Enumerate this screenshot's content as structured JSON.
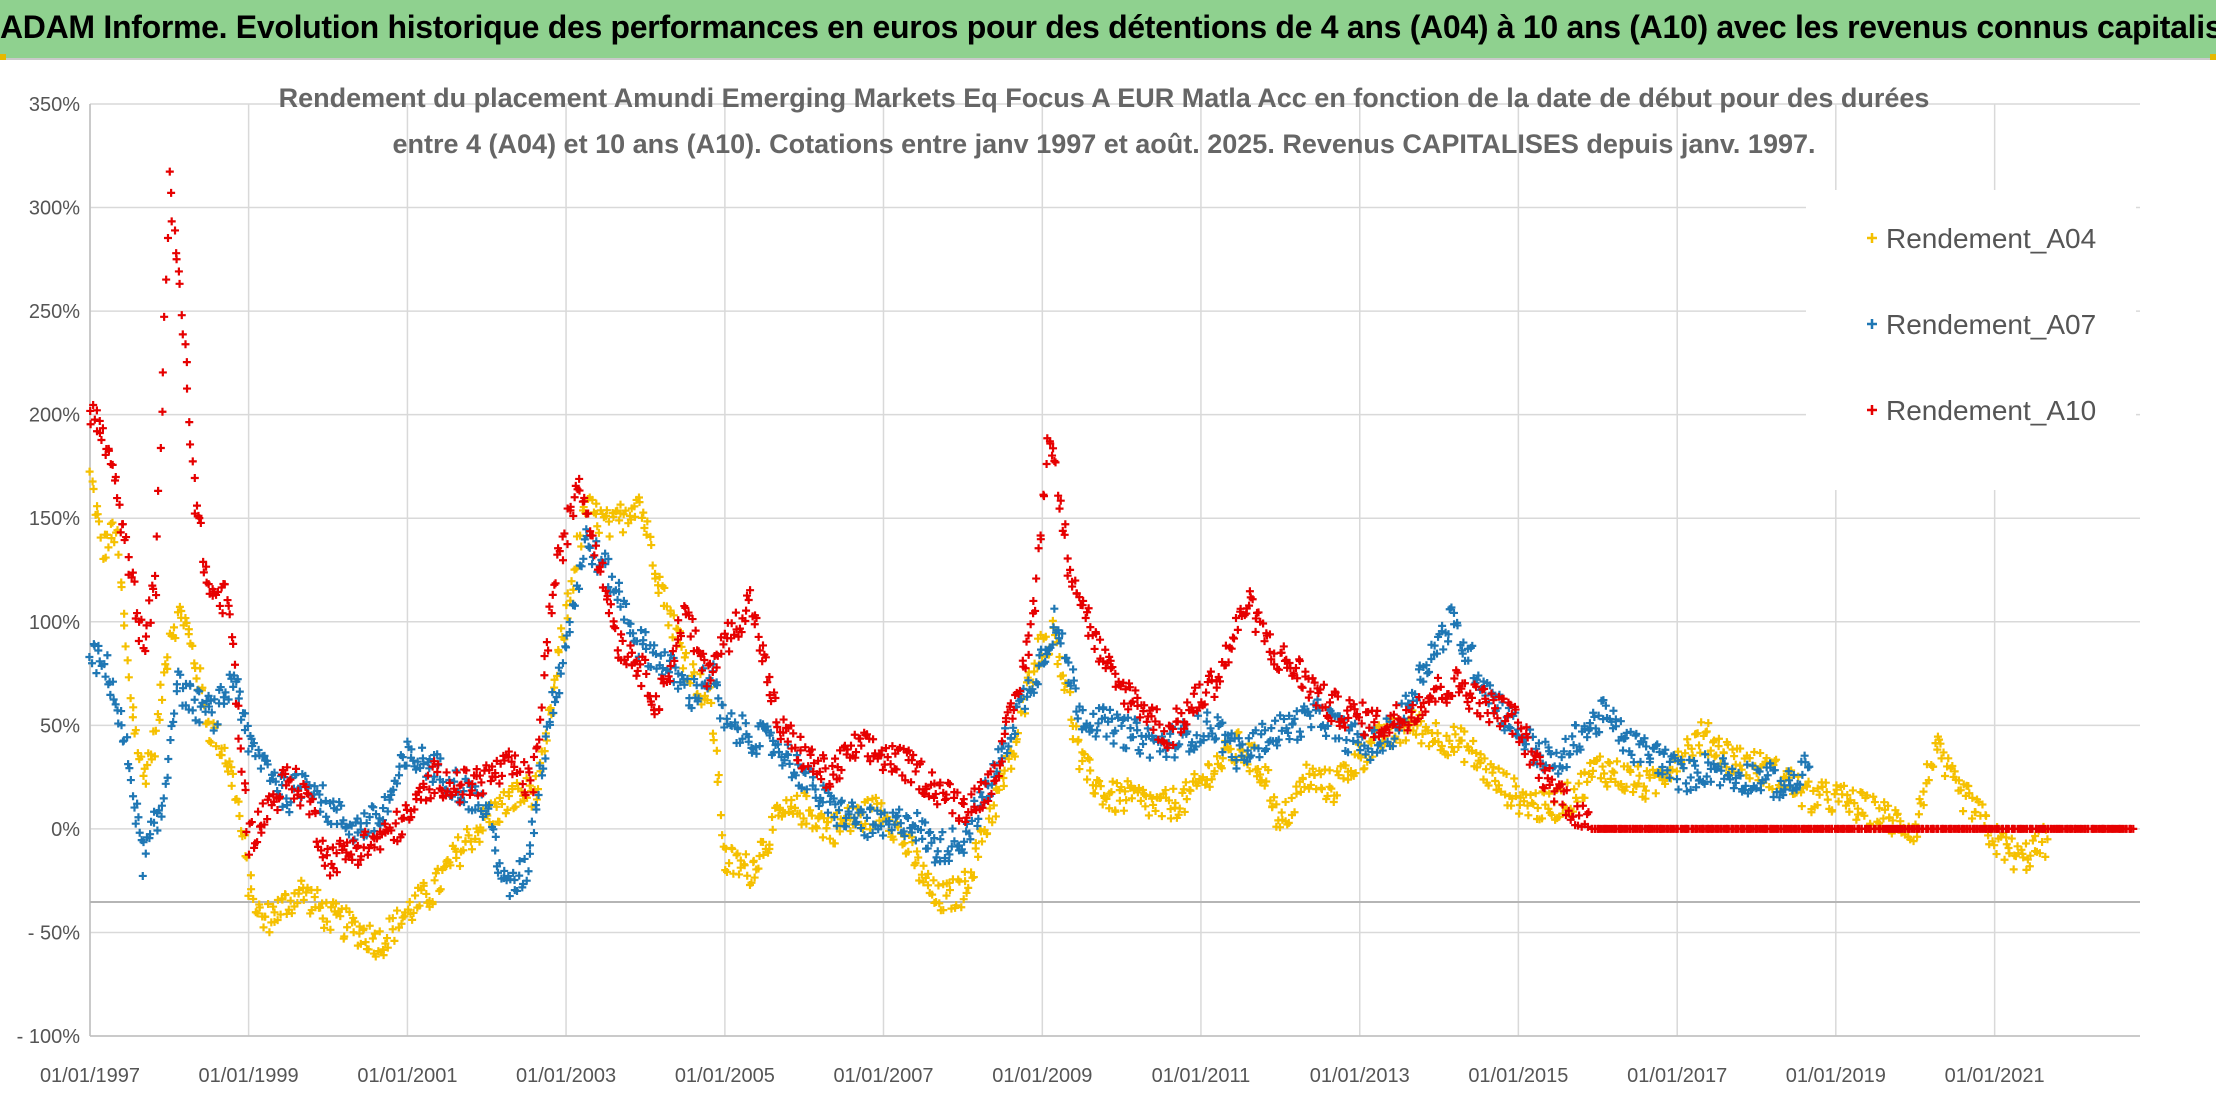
{
  "banner": {
    "title": "ADAM Informe. Evolution historique des performances en euros pour des détentions de 4 ans (A04) à 10 ans (A10) avec les revenus connus capitalisés"
  },
  "chart_data": {
    "type": "scatter",
    "title_lines": [
      "Rendement du placement Amundi Emerging Markets Eq Focus A EUR Matla Acc en fonction de la date de début pour des durées",
      "entre 4 (A04) et 10 ans (A10). Cotations entre janv 1997 et août. 2025. Revenus CAPITALISES depuis janv. 1997."
    ],
    "x_ticks": [
      "01/01/1997",
      "01/01/1999",
      "01/01/2001",
      "01/01/2003",
      "01/01/2005",
      "01/01/2007",
      "01/01/2009",
      "01/01/2011",
      "01/01/2013",
      "01/01/2015",
      "01/01/2017",
      "01/01/2019",
      "01/01/2021"
    ],
    "y_ticks": [
      "350%",
      "300%",
      "250%",
      "200%",
      "150%",
      "100%",
      "50%",
      "0%",
      "- 50%",
      "- 100%"
    ],
    "xlim": [
      "1997-01-01",
      "2022-11-01"
    ],
    "ylim": [
      -100,
      350
    ],
    "grid": true,
    "legend_position": "top-right",
    "marker": "+",
    "series": [
      {
        "name": "Rendement_A04",
        "color": "#f5c000",
        "points": [
          [
            "1997-01-01",
            170
          ],
          [
            "1997-03-01",
            135
          ],
          [
            "1997-05-01",
            145
          ],
          [
            "1997-07-01",
            70
          ],
          [
            "1997-09-01",
            25
          ],
          [
            "1997-11-01",
            45
          ],
          [
            "1998-01-01",
            95
          ],
          [
            "1998-03-01",
            105
          ],
          [
            "1998-05-01",
            80
          ],
          [
            "1998-07-01",
            50
          ],
          [
            "1998-09-01",
            40
          ],
          [
            "1998-11-01",
            20
          ],
          [
            "1999-01-01",
            -25
          ],
          [
            "1999-03-01",
            -45
          ],
          [
            "1999-06-01",
            -38
          ],
          [
            "1999-09-01",
            -30
          ],
          [
            "2000-01-01",
            -42
          ],
          [
            "2000-05-01",
            -48
          ],
          [
            "2000-09-01",
            -55
          ],
          [
            "2001-01-01",
            -40
          ],
          [
            "2001-05-01",
            -30
          ],
          [
            "2001-09-01",
            -10
          ],
          [
            "2002-01-01",
            5
          ],
          [
            "2002-05-01",
            15
          ],
          [
            "2002-09-01",
            20
          ],
          [
            "2002-12-01",
            85
          ],
          [
            "2003-04-01",
            155
          ],
          [
            "2003-08-01",
            145
          ],
          [
            "2003-12-01",
            160
          ],
          [
            "2004-04-01",
            110
          ],
          [
            "2004-08-01",
            75
          ],
          [
            "2004-11-01",
            60
          ],
          [
            "2005-01-01",
            -15
          ],
          [
            "2005-05-01",
            -20
          ],
          [
            "2005-09-01",
            5
          ],
          [
            "2006-01-01",
            10
          ],
          [
            "2006-05-01",
            0
          ],
          [
            "2006-09-01",
            5
          ],
          [
            "2007-01-01",
            10
          ],
          [
            "2007-05-01",
            -10
          ],
          [
            "2007-09-01",
            -35
          ],
          [
            "2008-01-01",
            -30
          ],
          [
            "2008-05-01",
            5
          ],
          [
            "2008-09-01",
            40
          ],
          [
            "2008-12-01",
            85
          ],
          [
            "2009-03-01",
            95
          ],
          [
            "2009-07-01",
            30
          ],
          [
            "2009-11-01",
            15
          ],
          [
            "2010-03-01",
            15
          ],
          [
            "2010-07-01",
            10
          ],
          [
            "2010-11-01",
            15
          ],
          [
            "2011-03-01",
            30
          ],
          [
            "2011-07-01",
            40
          ],
          [
            "2011-11-01",
            25
          ],
          [
            "2012-01-01",
            0
          ],
          [
            "2012-05-01",
            25
          ],
          [
            "2012-09-01",
            20
          ],
          [
            "2013-01-01",
            35
          ],
          [
            "2013-05-01",
            45
          ],
          [
            "2013-09-01",
            50
          ],
          [
            "2014-01-01",
            45
          ],
          [
            "2014-05-01",
            40
          ],
          [
            "2014-09-01",
            25
          ],
          [
            "2015-01-01",
            15
          ],
          [
            "2015-05-01",
            10
          ],
          [
            "2015-09-01",
            15
          ],
          [
            "2016-01-01",
            30
          ],
          [
            "2016-05-01",
            25
          ],
          [
            "2016-09-01",
            20
          ],
          [
            "2017-01-01",
            35
          ],
          [
            "2017-05-01",
            45
          ],
          [
            "2017-09-01",
            35
          ],
          [
            "2018-01-01",
            30
          ],
          [
            "2018-05-01",
            25
          ],
          [
            "2018-09-01",
            15
          ],
          [
            "2019-01-01",
            15
          ],
          [
            "2019-05-01",
            10
          ],
          [
            "2019-09-01",
            5
          ],
          [
            "2020-01-01",
            0
          ],
          [
            "2020-04-01",
            40
          ],
          [
            "2020-07-01",
            20
          ],
          [
            "2020-10-01",
            10
          ],
          [
            "2021-01-01",
            -5
          ],
          [
            "2021-05-01",
            -15
          ],
          [
            "2021-09-01",
            -5
          ]
        ]
      },
      {
        "name": "Rendement_A07",
        "color": "#1f77b4",
        "points": [
          [
            "1997-01-01",
            85
          ],
          [
            "1997-04-01",
            75
          ],
          [
            "1997-07-01",
            30
          ],
          [
            "1997-09-01",
            -15
          ],
          [
            "1997-12-01",
            10
          ],
          [
            "1998-02-01",
            70
          ],
          [
            "1998-05-01",
            60
          ],
          [
            "1998-08-01",
            55
          ],
          [
            "1998-11-01",
            75
          ],
          [
            "1999-01-01",
            40
          ],
          [
            "1999-04-01",
            30
          ],
          [
            "1999-07-01",
            15
          ],
          [
            "1999-10-01",
            25
          ],
          [
            "2000-01-01",
            10
          ],
          [
            "2000-05-01",
            0
          ],
          [
            "2000-09-01",
            5
          ],
          [
            "2001-01-01",
            35
          ],
          [
            "2001-05-01",
            30
          ],
          [
            "2001-09-01",
            20
          ],
          [
            "2002-01-01",
            10
          ],
          [
            "2002-04-01",
            -30
          ],
          [
            "2002-07-01",
            -20
          ],
          [
            "2002-10-01",
            45
          ],
          [
            "2003-01-01",
            90
          ],
          [
            "2003-04-01",
            140
          ],
          [
            "2003-08-01",
            120
          ],
          [
            "2003-12-01",
            90
          ],
          [
            "2004-04-01",
            80
          ],
          [
            "2004-08-01",
            65
          ],
          [
            "2004-11-01",
            75
          ],
          [
            "2005-01-01",
            50
          ],
          [
            "2005-05-01",
            45
          ],
          [
            "2005-09-01",
            40
          ],
          [
            "2006-01-01",
            25
          ],
          [
            "2006-05-01",
            10
          ],
          [
            "2006-09-01",
            5
          ],
          [
            "2007-01-01",
            0
          ],
          [
            "2007-05-01",
            5
          ],
          [
            "2007-09-01",
            -10
          ],
          [
            "2008-01-01",
            -5
          ],
          [
            "2008-05-01",
            20
          ],
          [
            "2008-09-01",
            55
          ],
          [
            "2008-12-01",
            75
          ],
          [
            "2009-03-01",
            100
          ],
          [
            "2009-07-01",
            55
          ],
          [
            "2009-11-01",
            50
          ],
          [
            "2010-03-01",
            45
          ],
          [
            "2010-07-01",
            40
          ],
          [
            "2010-11-01",
            45
          ],
          [
            "2011-03-01",
            50
          ],
          [
            "2011-07-01",
            35
          ],
          [
            "2011-11-01",
            45
          ],
          [
            "2012-03-01",
            50
          ],
          [
            "2012-07-01",
            55
          ],
          [
            "2012-11-01",
            45
          ],
          [
            "2013-03-01",
            40
          ],
          [
            "2013-07-01",
            50
          ],
          [
            "2013-11-01",
            80
          ],
          [
            "2014-03-01",
            100
          ],
          [
            "2014-07-01",
            75
          ],
          [
            "2014-11-01",
            55
          ],
          [
            "2015-03-01",
            40
          ],
          [
            "2015-07-01",
            30
          ],
          [
            "2015-10-01",
            45
          ],
          [
            "2016-02-01",
            55
          ],
          [
            "2016-06-01",
            40
          ],
          [
            "2016-10-01",
            35
          ],
          [
            "2017-02-01",
            25
          ],
          [
            "2017-06-01",
            30
          ],
          [
            "2017-10-01",
            25
          ],
          [
            "2018-02-01",
            25
          ],
          [
            "2018-06-01",
            20
          ],
          [
            "2018-09-01",
            30
          ]
        ]
      },
      {
        "name": "Rendement_A10",
        "color": "#e60000",
        "points": [
          [
            "1997-01-01",
            205
          ],
          [
            "1997-04-01",
            180
          ],
          [
            "1997-07-01",
            125
          ],
          [
            "1997-09-01",
            90
          ],
          [
            "1997-11-01",
            120
          ],
          [
            "1998-01-01",
            310
          ],
          [
            "1998-03-01",
            250
          ],
          [
            "1998-05-01",
            160
          ],
          [
            "1998-07-01",
            115
          ],
          [
            "1998-10-01",
            110
          ],
          [
            "1999-01-01",
            -5
          ],
          [
            "1999-04-01",
            10
          ],
          [
            "1999-07-01",
            25
          ],
          [
            "1999-10-01",
            15
          ],
          [
            "2000-01-01",
            -15
          ],
          [
            "2000-05-01",
            -10
          ],
          [
            "2000-09-01",
            -5
          ],
          [
            "2001-01-01",
            5
          ],
          [
            "2001-05-01",
            25
          ],
          [
            "2001-09-01",
            20
          ],
          [
            "2002-01-01",
            25
          ],
          [
            "2002-05-01",
            30
          ],
          [
            "2002-08-01",
            20
          ],
          [
            "2002-11-01",
            115
          ],
          [
            "2003-03-01",
            170
          ],
          [
            "2003-06-01",
            130
          ],
          [
            "2003-09-01",
            90
          ],
          [
            "2003-12-01",
            80
          ],
          [
            "2004-03-01",
            60
          ],
          [
            "2004-07-01",
            105
          ],
          [
            "2004-10-01",
            75
          ],
          [
            "2005-01-01",
            90
          ],
          [
            "2005-05-01",
            110
          ],
          [
            "2005-09-01",
            50
          ],
          [
            "2006-01-01",
            35
          ],
          [
            "2006-05-01",
            25
          ],
          [
            "2006-09-01",
            40
          ],
          [
            "2007-01-01",
            35
          ],
          [
            "2007-05-01",
            30
          ],
          [
            "2007-09-01",
            20
          ],
          [
            "2008-01-01",
            10
          ],
          [
            "2008-05-01",
            20
          ],
          [
            "2008-09-01",
            60
          ],
          [
            "2008-12-01",
            110
          ],
          [
            "2009-02-01",
            195
          ],
          [
            "2009-05-01",
            130
          ],
          [
            "2009-09-01",
            90
          ],
          [
            "2009-12-01",
            70
          ],
          [
            "2010-04-01",
            60
          ],
          [
            "2010-08-01",
            45
          ],
          [
            "2010-12-01",
            60
          ],
          [
            "2011-04-01",
            75
          ],
          [
            "2011-08-01",
            110
          ],
          [
            "2011-12-01",
            85
          ],
          [
            "2012-04-01",
            75
          ],
          [
            "2012-08-01",
            60
          ],
          [
            "2012-12-01",
            55
          ],
          [
            "2013-04-01",
            50
          ],
          [
            "2013-08-01",
            55
          ],
          [
            "2013-12-01",
            65
          ],
          [
            "2014-04-01",
            70
          ],
          [
            "2014-08-01",
            60
          ],
          [
            "2014-12-01",
            55
          ],
          [
            "2015-04-01",
            30
          ],
          [
            "2015-08-01",
            15
          ],
          [
            "2015-12-01",
            0
          ],
          [
            "2016-06-01",
            0
          ],
          [
            "2017-01-01",
            0
          ],
          [
            "2017-06-01",
            0
          ],
          [
            "2018-01-01",
            0
          ],
          [
            "2018-06-01",
            0
          ],
          [
            "2019-01-01",
            0
          ],
          [
            "2019-06-01",
            0
          ],
          [
            "2020-01-01",
            0
          ],
          [
            "2020-06-01",
            0
          ],
          [
            "2021-01-01",
            0
          ],
          [
            "2021-06-01",
            0
          ],
          [
            "2022-01-01",
            0
          ],
          [
            "2022-10-01",
            0
          ]
        ]
      }
    ]
  }
}
